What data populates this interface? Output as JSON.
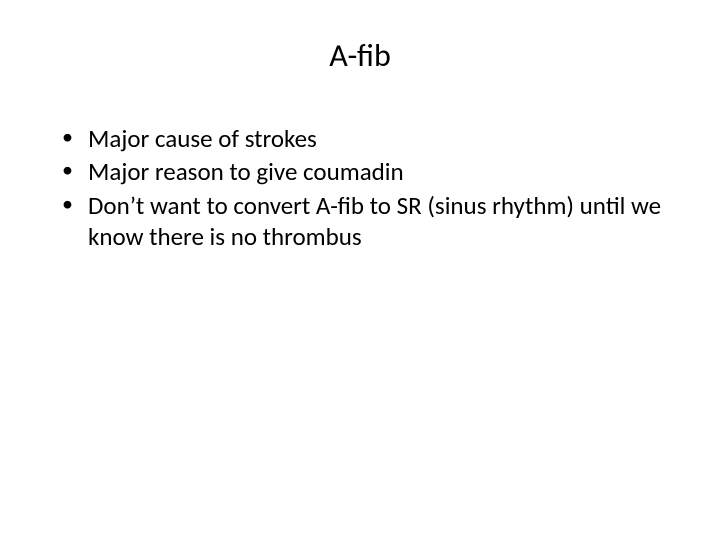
{
  "slide": {
    "title": "A-fib",
    "title_fontsize": 32,
    "body_fontsize": 25,
    "background_color": "#ffffff",
    "text_color": "#000000",
    "bullets": [
      "Major cause of strokes",
      "Major reason to give coumadin",
      "Don’t want to convert A-fib to SR (sinus rhythm) until we know there is no thrombus"
    ]
  }
}
